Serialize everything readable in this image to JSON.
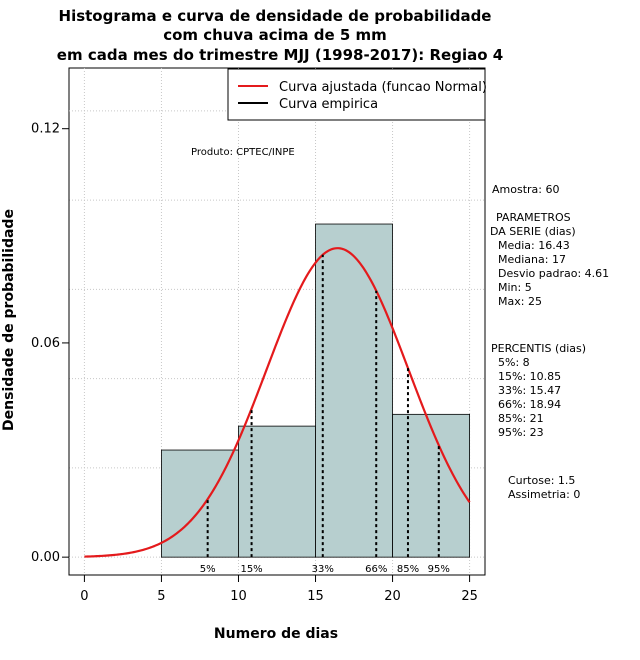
{
  "chart_data": {
    "type": "histogram",
    "title": [
      "Histograma e curva de densidade de probabilidade",
      "com chuva acima de 5 mm",
      "em cada mes do trimestre MJJ (1998-2017): Regiao 4"
    ],
    "xlabel": "Numero de dias",
    "ylabel": "Densidade de probabilidade",
    "xlim": [
      -1,
      26
    ],
    "ylim": [
      -0.005,
      0.137
    ],
    "x_ticks": [
      0,
      5,
      10,
      15,
      20,
      25
    ],
    "y_ticks": [
      0.0,
      0.06,
      0.12
    ],
    "y_tick_labels": [
      "0.00",
      "0.06",
      "0.12"
    ],
    "bins": [
      {
        "start": 5,
        "end": 10,
        "density": 0.03
      },
      {
        "start": 10,
        "end": 15,
        "density": 0.0367
      },
      {
        "start": 15,
        "end": 20,
        "density": 0.0933
      },
      {
        "start": 20,
        "end": 25,
        "density": 0.04
      }
    ],
    "bar_color": "#b7cfcf",
    "curve_color": "#e41a1c",
    "normal_fit": {
      "mean": 16.43,
      "sd": 4.61,
      "x_range": [
        0,
        25
      ]
    },
    "percentiles": [
      {
        "label": "5%",
        "x": 8
      },
      {
        "label": "15%",
        "x": 10.85
      },
      {
        "label": "33%",
        "x": 15.47
      },
      {
        "label": "66%",
        "x": 18.94
      },
      {
        "label": "85%",
        "x": 21
      },
      {
        "label": "95%",
        "x": 23
      }
    ],
    "legend": [
      {
        "label": "Curva ajustada (funcao Normal)",
        "color": "#e41a1c"
      },
      {
        "label": "Curva empirica",
        "color": "#000000"
      }
    ],
    "annotation": "Produto: CPTEC/INPE"
  },
  "side_panel": {
    "sample": "Amostra: 60",
    "params_title": [
      "PARAMETROS",
      "DA SERIE (dias)"
    ],
    "params": [
      "Media: 16.43",
      "Mediana: 17",
      "Desvio padrao: 4.61",
      "Min: 5",
      "Max: 25"
    ],
    "percentis_title": "PERCENTIS (dias)",
    "percentis": [
      "5%: 8",
      "15%: 10.85",
      "33%: 15.47",
      "66%: 18.94",
      "85%: 21",
      "95%: 23"
    ],
    "shape": [
      "Curtose: 1.5",
      "Assimetria: 0"
    ]
  }
}
